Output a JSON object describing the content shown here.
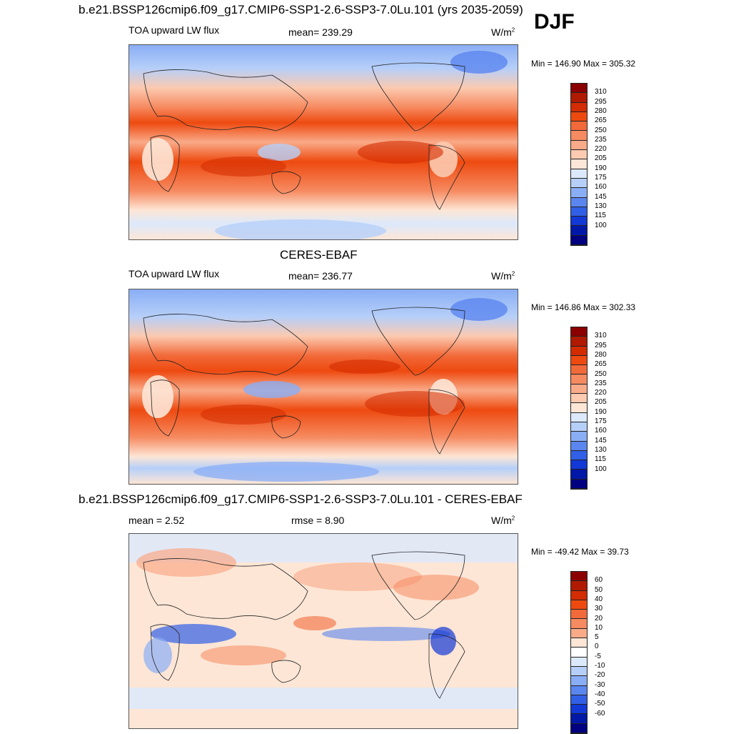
{
  "header": {
    "title": "b.e21.BSSP126cmip6.f09_g17.CMIP6-SSP1-2.6-SSP3-7.0Lu.101 (yrs 2035-2059)",
    "season": "DJF"
  },
  "panels": [
    {
      "name": "model",
      "left_label": "TOA upward LW flux",
      "center_label": "mean= 239.29",
      "units": "W/m",
      "units_sup": "2",
      "minmax": "Min = 146.90 Max = 305.32",
      "colorbar": {
        "labels": [
          "310",
          "295",
          "280",
          "265",
          "250",
          "235",
          "220",
          "205",
          "190",
          "175",
          "160",
          "145",
          "130",
          "115",
          "100"
        ],
        "colors": [
          "#8b0000",
          "#b01a00",
          "#d32c00",
          "#ee4a10",
          "#f26a3a",
          "#f68a60",
          "#f9aa88",
          "#fbcab0",
          "#fde6d6",
          "#dce9fc",
          "#b6cff9",
          "#8aaef5",
          "#5b86ef",
          "#3160e6",
          "#1238d6",
          "#0018a8",
          "#000080"
        ]
      }
    },
    {
      "name": "obs",
      "heading": "CERES-EBAF",
      "left_label": "TOA upward LW flux",
      "center_label": "mean= 236.77",
      "units": "W/m",
      "units_sup": "2",
      "minmax": "Min = 146.86 Max = 302.33",
      "colorbar": {
        "labels": [
          "310",
          "295",
          "280",
          "265",
          "250",
          "235",
          "220",
          "205",
          "190",
          "175",
          "160",
          "145",
          "130",
          "115",
          "100"
        ],
        "colors": [
          "#8b0000",
          "#b01a00",
          "#d32c00",
          "#ee4a10",
          "#f26a3a",
          "#f68a60",
          "#f9aa88",
          "#fbcab0",
          "#fde6d6",
          "#dce9fc",
          "#b6cff9",
          "#8aaef5",
          "#5b86ef",
          "#3160e6",
          "#1238d6",
          "#0018a8",
          "#000080"
        ]
      }
    },
    {
      "name": "diff",
      "heading": "b.e21.BSSP126cmip6.f09_g17.CMIP6-SSP1-2.6-SSP3-7.0Lu.101 - CERES-EBAF",
      "left_label": "mean =   2.52",
      "center_label": "rmse =   8.90",
      "units": "W/m",
      "units_sup": "2",
      "minmax": "Min = -49.42 Max =  39.73",
      "colorbar": {
        "labels": [
          "60",
          "50",
          "40",
          "30",
          "20",
          "10",
          "5",
          "0",
          "-5",
          "-10",
          "-20",
          "-30",
          "-40",
          "-50",
          "-60"
        ],
        "colors": [
          "#8b0000",
          "#b01a00",
          "#d32c00",
          "#ee4a10",
          "#f26a3a",
          "#f68a60",
          "#f9aa88",
          "#fde6d6",
          "#ffffff",
          "#dce9fc",
          "#b6cff9",
          "#8aaef5",
          "#5b86ef",
          "#3160e6",
          "#1238d6",
          "#0018a8",
          "#000080"
        ]
      }
    }
  ]
}
